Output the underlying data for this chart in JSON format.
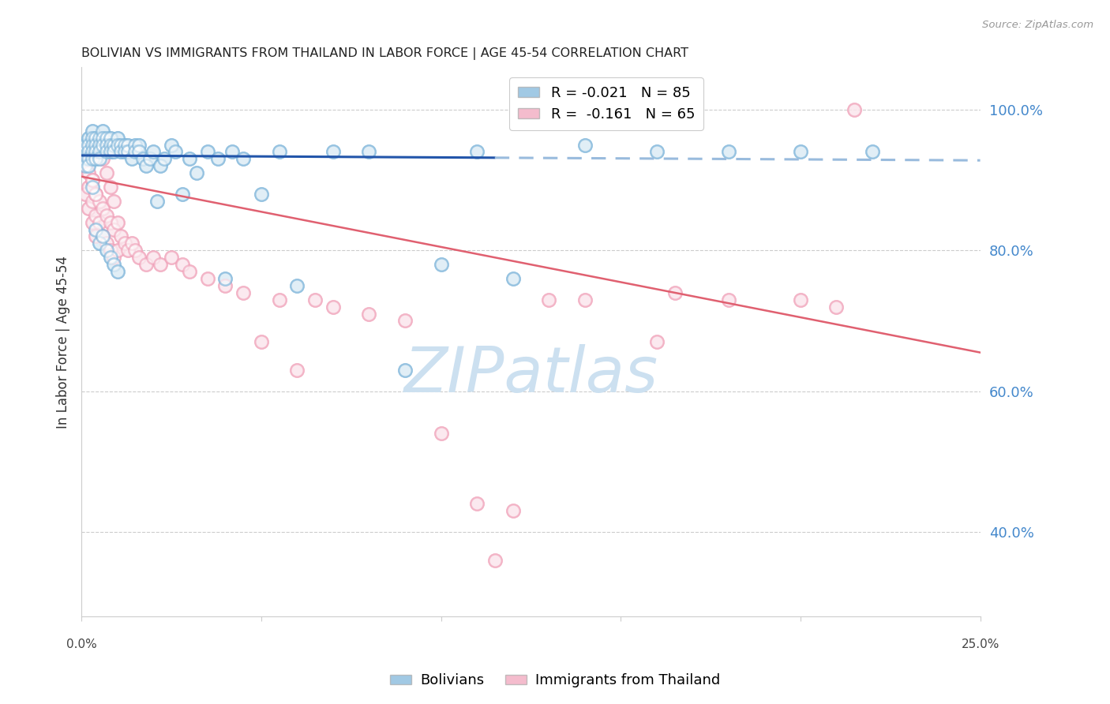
{
  "title": "BOLIVIAN VS IMMIGRANTS FROM THAILAND IN LABOR FORCE | AGE 45-54 CORRELATION CHART",
  "source": "Source: ZipAtlas.com",
  "ylabel": "In Labor Force | Age 45-54",
  "ytick_labels": [
    "100.0%",
    "80.0%",
    "60.0%",
    "40.0%"
  ],
  "ytick_values": [
    1.0,
    0.8,
    0.6,
    0.4
  ],
  "blue_R": -0.021,
  "blue_N": 85,
  "pink_R": -0.161,
  "pink_N": 65,
  "blue_color": "#7ab3d9",
  "pink_color": "#f0a0b8",
  "blue_line_color": "#2255aa",
  "pink_line_color": "#e06070",
  "blue_dash_color": "#99bbdd",
  "watermark_text": "ZIPatlas",
  "watermark_color": "#cce0f0",
  "title_color": "#222222",
  "axis_label_color": "#4488cc",
  "grid_color": "#cccccc",
  "xlim": [
    0.0,
    0.25
  ],
  "ylim": [
    0.28,
    1.06
  ],
  "blue_line_y0": 0.935,
  "blue_line_y1": 0.928,
  "pink_line_y0": 0.905,
  "pink_line_y1": 0.655,
  "blue_x": [
    0.001,
    0.001,
    0.001,
    0.001,
    0.002,
    0.002,
    0.002,
    0.002,
    0.002,
    0.003,
    0.003,
    0.003,
    0.003,
    0.003,
    0.004,
    0.004,
    0.004,
    0.004,
    0.005,
    0.005,
    0.005,
    0.005,
    0.006,
    0.006,
    0.006,
    0.007,
    0.007,
    0.007,
    0.008,
    0.008,
    0.008,
    0.009,
    0.009,
    0.01,
    0.01,
    0.011,
    0.011,
    0.012,
    0.012,
    0.013,
    0.013,
    0.014,
    0.015,
    0.015,
    0.016,
    0.016,
    0.017,
    0.018,
    0.019,
    0.02,
    0.021,
    0.022,
    0.023,
    0.025,
    0.026,
    0.028,
    0.03,
    0.032,
    0.035,
    0.038,
    0.04,
    0.042,
    0.045,
    0.05,
    0.055,
    0.06,
    0.07,
    0.08,
    0.09,
    0.1,
    0.11,
    0.12,
    0.14,
    0.16,
    0.18,
    0.2,
    0.22,
    0.003,
    0.004,
    0.005,
    0.006,
    0.007,
    0.008,
    0.009,
    0.01
  ],
  "blue_y": [
    0.94,
    0.95,
    0.93,
    0.92,
    0.96,
    0.95,
    0.94,
    0.93,
    0.92,
    0.97,
    0.96,
    0.95,
    0.94,
    0.93,
    0.96,
    0.95,
    0.94,
    0.93,
    0.96,
    0.95,
    0.94,
    0.93,
    0.97,
    0.96,
    0.95,
    0.96,
    0.95,
    0.94,
    0.96,
    0.95,
    0.94,
    0.95,
    0.94,
    0.96,
    0.95,
    0.95,
    0.94,
    0.95,
    0.94,
    0.95,
    0.94,
    0.93,
    0.95,
    0.94,
    0.95,
    0.94,
    0.93,
    0.92,
    0.93,
    0.94,
    0.87,
    0.92,
    0.93,
    0.95,
    0.94,
    0.88,
    0.93,
    0.91,
    0.94,
    0.93,
    0.76,
    0.94,
    0.93,
    0.88,
    0.94,
    0.75,
    0.94,
    0.94,
    0.63,
    0.78,
    0.94,
    0.76,
    0.95,
    0.94,
    0.94,
    0.94,
    0.94,
    0.89,
    0.83,
    0.81,
    0.82,
    0.8,
    0.79,
    0.78,
    0.77
  ],
  "pink_x": [
    0.001,
    0.001,
    0.001,
    0.002,
    0.002,
    0.002,
    0.003,
    0.003,
    0.003,
    0.004,
    0.004,
    0.004,
    0.005,
    0.005,
    0.006,
    0.006,
    0.007,
    0.007,
    0.008,
    0.008,
    0.009,
    0.009,
    0.01,
    0.01,
    0.011,
    0.012,
    0.013,
    0.014,
    0.015,
    0.016,
    0.018,
    0.02,
    0.022,
    0.025,
    0.028,
    0.03,
    0.035,
    0.04,
    0.045,
    0.05,
    0.055,
    0.06,
    0.065,
    0.07,
    0.08,
    0.09,
    0.1,
    0.11,
    0.115,
    0.12,
    0.13,
    0.14,
    0.16,
    0.165,
    0.18,
    0.2,
    0.21,
    0.215,
    0.003,
    0.004,
    0.005,
    0.006,
    0.007,
    0.008,
    0.009
  ],
  "pink_y": [
    0.94,
    0.92,
    0.88,
    0.91,
    0.89,
    0.86,
    0.9,
    0.87,
    0.84,
    0.88,
    0.85,
    0.82,
    0.87,
    0.84,
    0.86,
    0.82,
    0.85,
    0.81,
    0.84,
    0.8,
    0.83,
    0.79,
    0.84,
    0.8,
    0.82,
    0.81,
    0.8,
    0.81,
    0.8,
    0.79,
    0.78,
    0.79,
    0.78,
    0.79,
    0.78,
    0.77,
    0.76,
    0.75,
    0.74,
    0.67,
    0.73,
    0.63,
    0.73,
    0.72,
    0.71,
    0.7,
    0.54,
    0.44,
    0.36,
    0.43,
    0.73,
    0.73,
    0.67,
    0.74,
    0.73,
    0.73,
    0.72,
    1.0,
    0.9,
    0.88,
    0.95,
    0.93,
    0.91,
    0.89,
    0.87
  ]
}
